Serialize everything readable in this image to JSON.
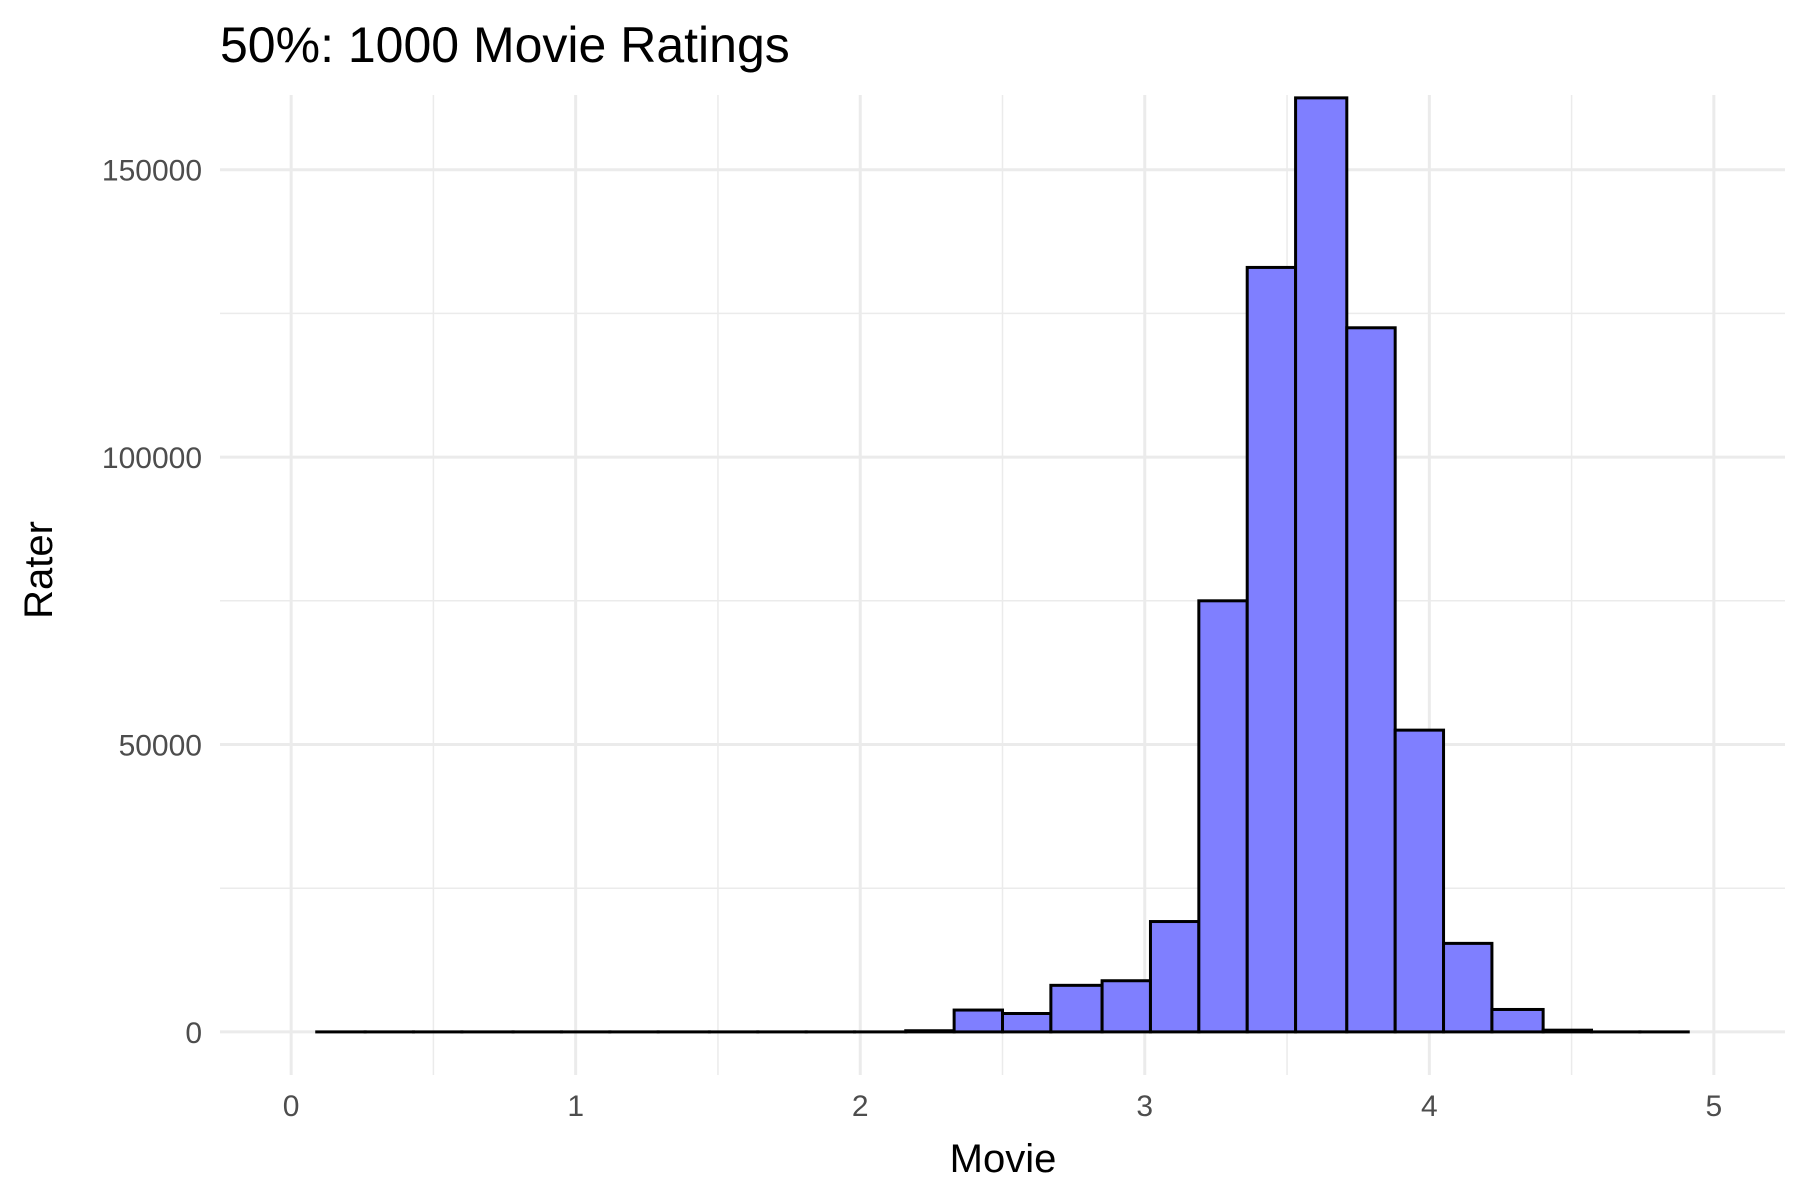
{
  "chart_data": {
    "type": "bar",
    "title": "50%: 1000 Movie Ratings",
    "xlabel": "Movie",
    "ylabel": "Rater",
    "xlim": [
      -0.25,
      5.25
    ],
    "ylim": [
      -7500,
      163000
    ],
    "x_ticks": [
      0,
      1,
      2,
      3,
      4,
      5
    ],
    "y_ticks": [
      0,
      50000,
      100000,
      150000
    ],
    "x_minor_ticks": [
      0.5,
      1.5,
      2.5,
      3.5,
      4.5
    ],
    "y_minor_ticks": [
      25000,
      75000,
      125000
    ],
    "grid": true,
    "bar_color": "#7f7fff",
    "bar_edge_color": "#000000",
    "bins": [
      {
        "x0": 0.09,
        "x1": 0.26,
        "count": 0
      },
      {
        "x0": 0.26,
        "x1": 0.43,
        "count": 0
      },
      {
        "x0": 0.43,
        "x1": 0.6,
        "count": 0
      },
      {
        "x0": 0.6,
        "x1": 0.78,
        "count": 0
      },
      {
        "x0": 0.78,
        "x1": 0.95,
        "count": 0
      },
      {
        "x0": 0.95,
        "x1": 1.12,
        "count": 0
      },
      {
        "x0": 1.12,
        "x1": 1.29,
        "count": 0
      },
      {
        "x0": 1.29,
        "x1": 1.47,
        "count": 0
      },
      {
        "x0": 1.47,
        "x1": 1.64,
        "count": 0
      },
      {
        "x0": 1.64,
        "x1": 1.81,
        "count": 0
      },
      {
        "x0": 1.81,
        "x1": 1.98,
        "count": 0
      },
      {
        "x0": 1.98,
        "x1": 2.16,
        "count": 0
      },
      {
        "x0": 2.16,
        "x1": 2.33,
        "count": 200
      },
      {
        "x0": 2.33,
        "x1": 2.5,
        "count": 3800
      },
      {
        "x0": 2.5,
        "x1": 2.67,
        "count": 3200
      },
      {
        "x0": 2.67,
        "x1": 2.85,
        "count": 8100
      },
      {
        "x0": 2.85,
        "x1": 3.02,
        "count": 8900
      },
      {
        "x0": 3.02,
        "x1": 3.19,
        "count": 19200
      },
      {
        "x0": 3.19,
        "x1": 3.36,
        "count": 75000
      },
      {
        "x0": 3.36,
        "x1": 3.53,
        "count": 133000
      },
      {
        "x0": 3.53,
        "x1": 3.71,
        "count": 162500
      },
      {
        "x0": 3.71,
        "x1": 3.88,
        "count": 122500
      },
      {
        "x0": 3.88,
        "x1": 4.05,
        "count": 52500
      },
      {
        "x0": 4.05,
        "x1": 4.22,
        "count": 15400
      },
      {
        "x0": 4.22,
        "x1": 4.4,
        "count": 3900
      },
      {
        "x0": 4.4,
        "x1": 4.57,
        "count": 300
      },
      {
        "x0": 4.57,
        "x1": 4.74,
        "count": 0
      },
      {
        "x0": 4.74,
        "x1": 4.91,
        "count": 0
      }
    ]
  }
}
